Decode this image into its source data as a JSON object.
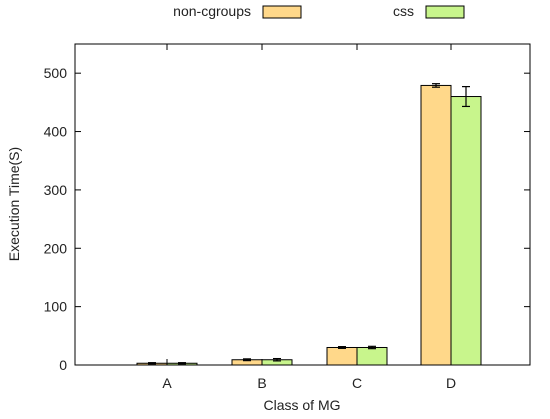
{
  "chart_data": {
    "type": "bar",
    "title": "",
    "xlabel": "Class of MG",
    "ylabel": "Execution Time(S)",
    "ylim": [
      0,
      550
    ],
    "yticks": [
      0,
      100,
      200,
      300,
      400,
      500
    ],
    "categories": [
      "A",
      "B",
      "C",
      "D"
    ],
    "grid": false,
    "legend_position": "top",
    "series": [
      {
        "name": "non-cgroups",
        "color": "#ffd88a",
        "values": [
          3,
          9,
          30,
          479
        ],
        "errors": [
          1,
          1.5,
          1.5,
          3
        ]
      },
      {
        "name": "css",
        "color": "#c8f58c",
        "values": [
          3,
          9,
          30,
          460
        ],
        "errors": [
          1,
          2,
          2,
          17
        ]
      }
    ]
  }
}
